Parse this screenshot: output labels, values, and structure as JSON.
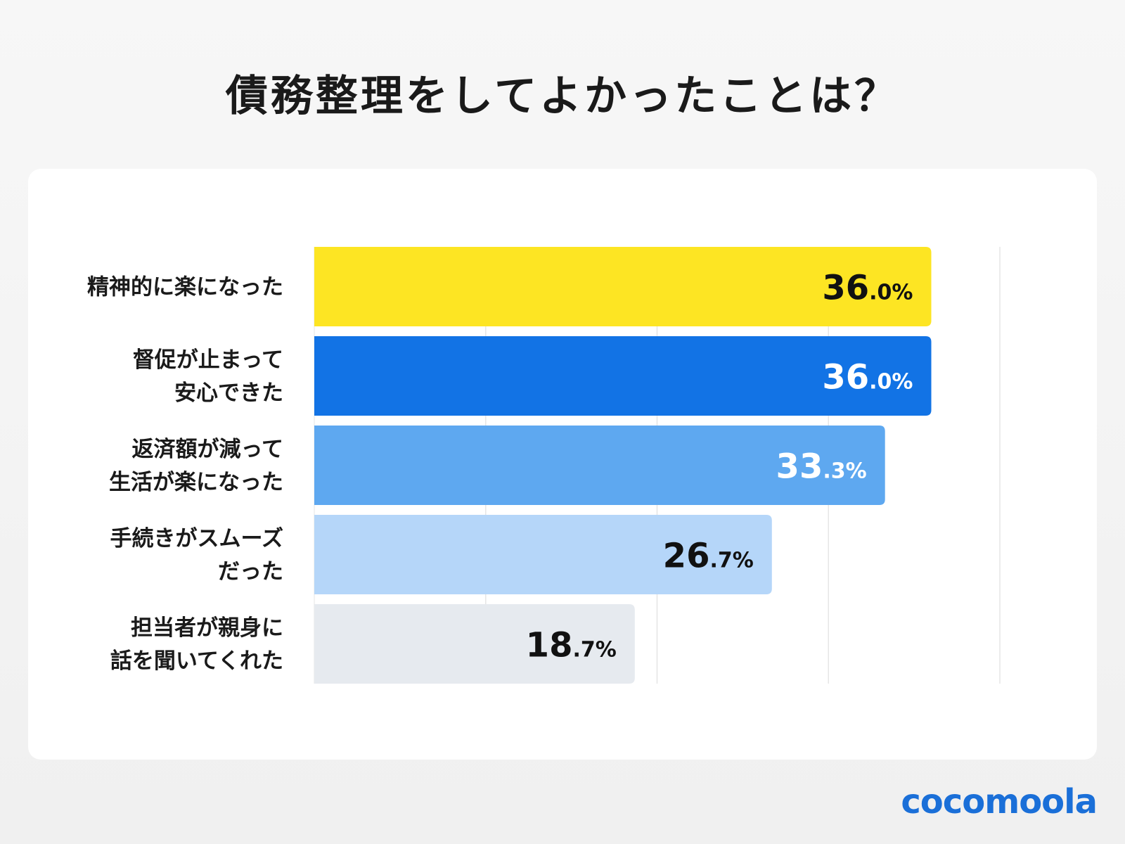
{
  "title": "債務整理をしてよかったことは？",
  "logo": "cocomoola",
  "chart_data": {
    "type": "bar",
    "orientation": "horizontal",
    "title": "債務整理をしてよかったことは？",
    "categories": [
      [
        "精神的に楽になった"
      ],
      [
        "督促が止まって",
        "安心できた"
      ],
      [
        "返済額が減って",
        "生活が楽になった"
      ],
      [
        "手続きがスムーズ",
        "だった"
      ],
      [
        "担当者が親身に",
        "話を聞いてくれた"
      ]
    ],
    "values": [
      36.0,
      36.0,
      33.3,
      26.7,
      18.7
    ],
    "unit": "%",
    "xlim": [
      0,
      40
    ],
    "gridlines": [
      10,
      20,
      30,
      40
    ],
    "grid": true,
    "colors": [
      "#fde523",
      "#1273e5",
      "#5ea8f0",
      "#b5d6f9",
      "#e6eaef"
    ],
    "label_colors": [
      "#111111",
      "#ffffff",
      "#ffffff",
      "#111111",
      "#111111"
    ]
  }
}
